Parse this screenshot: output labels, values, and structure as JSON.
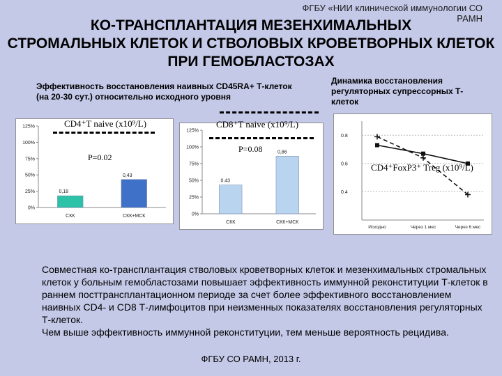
{
  "header": {
    "organization": "ФГБУ «НИИ клинической иммунологии СО РАМН",
    "title_line1": "КО-ТРАНСПЛАНТАЦИЯ МЕЗЕНХИМАЛЬНЫХ",
    "title_line2": "СТРОМАЛЬНЫХ КЛЕТОК И СТВОЛОВЫХ КРОВЕТВОРНЫХ КЛЕТОК",
    "title_line3": "ПРИ ГЕМОБЛАСТОЗАХ"
  },
  "left_subtitle": "Эффективность восстановления наивных CD45RA+ Т-клеток (на 20-30 сут.) относительно исходного уровня",
  "right_subtitle": "Динамика восстановления регуляторных супрессорных Т-клеток",
  "chart_data": [
    {
      "type": "bar",
      "label": "CD4⁺T naive (x10⁹/L)",
      "pvalue": "P=0.02",
      "categories": [
        "СКК",
        "СКК+МСК"
      ],
      "values": [
        0.18,
        0.43
      ],
      "value_labels": [
        "0,18",
        "0,43"
      ],
      "yticks": [
        "0%",
        "25%",
        "50%",
        "75%",
        "100%",
        "125%"
      ],
      "ylim": [
        0,
        1.25
      ],
      "colors": [
        "#2cc2a8",
        "#3f71c8"
      ]
    },
    {
      "type": "bar",
      "label": "CD8⁺T naive (x10⁹/L)",
      "pvalue": "P=0.08",
      "categories": [
        "СКК",
        "СКК+МСК"
      ],
      "values": [
        0.43,
        0.86
      ],
      "value_labels": [
        "0.43",
        "0,86"
      ],
      "yticks": [
        "0%",
        "25%",
        "50%",
        "75%",
        "100%",
        "125%"
      ],
      "ylim": [
        0,
        1.25
      ],
      "colors": [
        "#b9d4ef",
        "#b9d4ef"
      ]
    },
    {
      "type": "line",
      "label": "CD4⁺FoxP3⁺ Treg (x10⁹/L)",
      "categories": [
        "Исходно",
        "Через 1 мес",
        "Через 6 мес"
      ],
      "yticks": [
        "0.4",
        "0.6",
        "0.8"
      ],
      "ylim": [
        0.2,
        0.9
      ],
      "series": [
        {
          "values": [
            0.73,
            0.67,
            0.6
          ],
          "marker": "square",
          "dashed": false
        },
        {
          "values": [
            0.79,
            0.64,
            0.38
          ],
          "marker": "plus",
          "dashed": true
        }
      ]
    }
  ],
  "conclusion_paragraph": "Совместная ко-трансплантация стволовых кроветворных клеток и мезенхимальных стромальных клеток у больным гемобластозами повышает эффективность иммунной реконституции Т-клеток в раннем посттрансплантационном периоде за счет более эффективного восстановлением наивных CD4- и CD8 Т-лимфоцитов при неизменных показателях восстановления регуляторных Т-клеток.",
  "conclusion_line": "Чем выше эффективность иммунной реконституции, тем меньше вероятность рецидива.",
  "footer": "ФГБУ СО РАМН, 2013 г."
}
